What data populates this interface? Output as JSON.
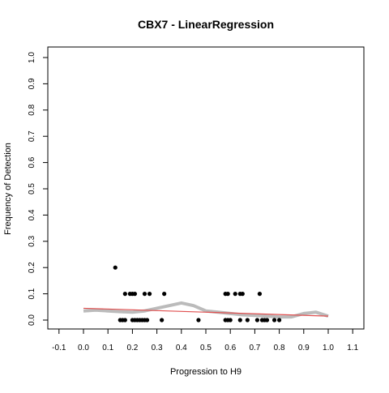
{
  "chart_data": {
    "type": "scatter",
    "title": "CBX7 - LinearRegression",
    "xlabel": "Progression to H9",
    "ylabel": "Frequency of Detection",
    "xlim": [
      -0.1,
      1.1
    ],
    "ylim": [
      0.0,
      1.0
    ],
    "x_ticks": [
      "-0.1",
      "0.0",
      "0.1",
      "0.2",
      "0.3",
      "0.4",
      "0.5",
      "0.6",
      "0.7",
      "0.8",
      "0.9",
      "1.0",
      "1.1"
    ],
    "y_ticks": [
      "0.0",
      "0.1",
      "0.2",
      "0.3",
      "0.4",
      "0.5",
      "0.6",
      "0.7",
      "0.8",
      "0.9",
      "1.0"
    ],
    "grid": false,
    "colors": {
      "points": "#000000",
      "smooth": "#bbbbbb",
      "fit": "#e05050"
    },
    "series": [
      {
        "kind": "points",
        "points": [
          [
            0.13,
            0.2
          ],
          [
            0.17,
            0.1
          ],
          [
            0.19,
            0.1
          ],
          [
            0.2,
            0.1
          ],
          [
            0.21,
            0.1
          ],
          [
            0.25,
            0.1
          ],
          [
            0.27,
            0.1
          ],
          [
            0.33,
            0.1
          ],
          [
            0.58,
            0.1
          ],
          [
            0.59,
            0.1
          ],
          [
            0.62,
            0.1
          ],
          [
            0.64,
            0.1
          ],
          [
            0.65,
            0.1
          ],
          [
            0.72,
            0.1
          ],
          [
            0.15,
            0.0
          ],
          [
            0.16,
            0.0
          ],
          [
            0.17,
            0.0
          ],
          [
            0.2,
            0.0
          ],
          [
            0.21,
            0.0
          ],
          [
            0.22,
            0.0
          ],
          [
            0.23,
            0.0
          ],
          [
            0.24,
            0.0
          ],
          [
            0.25,
            0.0
          ],
          [
            0.26,
            0.0
          ],
          [
            0.32,
            0.0
          ],
          [
            0.47,
            0.0
          ],
          [
            0.58,
            0.0
          ],
          [
            0.59,
            0.0
          ],
          [
            0.6,
            0.0
          ],
          [
            0.64,
            0.0
          ],
          [
            0.67,
            0.0
          ],
          [
            0.71,
            0.0
          ],
          [
            0.73,
            0.0
          ],
          [
            0.74,
            0.0
          ],
          [
            0.75,
            0.0
          ],
          [
            0.78,
            0.0
          ],
          [
            0.8,
            0.0
          ]
        ]
      },
      {
        "kind": "smooth",
        "points": [
          [
            0.0,
            0.035
          ],
          [
            0.05,
            0.038
          ],
          [
            0.1,
            0.035
          ],
          [
            0.15,
            0.032
          ],
          [
            0.2,
            0.03
          ],
          [
            0.25,
            0.035
          ],
          [
            0.3,
            0.045
          ],
          [
            0.35,
            0.055
          ],
          [
            0.4,
            0.065
          ],
          [
            0.45,
            0.055
          ],
          [
            0.5,
            0.035
          ],
          [
            0.55,
            0.03
          ],
          [
            0.6,
            0.025
          ],
          [
            0.65,
            0.02
          ],
          [
            0.7,
            0.018
          ],
          [
            0.75,
            0.015
          ],
          [
            0.8,
            0.012
          ],
          [
            0.85,
            0.012
          ],
          [
            0.9,
            0.025
          ],
          [
            0.95,
            0.03
          ],
          [
            1.0,
            0.015
          ]
        ]
      },
      {
        "kind": "fit",
        "points": [
          [
            0.0,
            0.045
          ],
          [
            1.0,
            0.015
          ]
        ]
      }
    ]
  }
}
